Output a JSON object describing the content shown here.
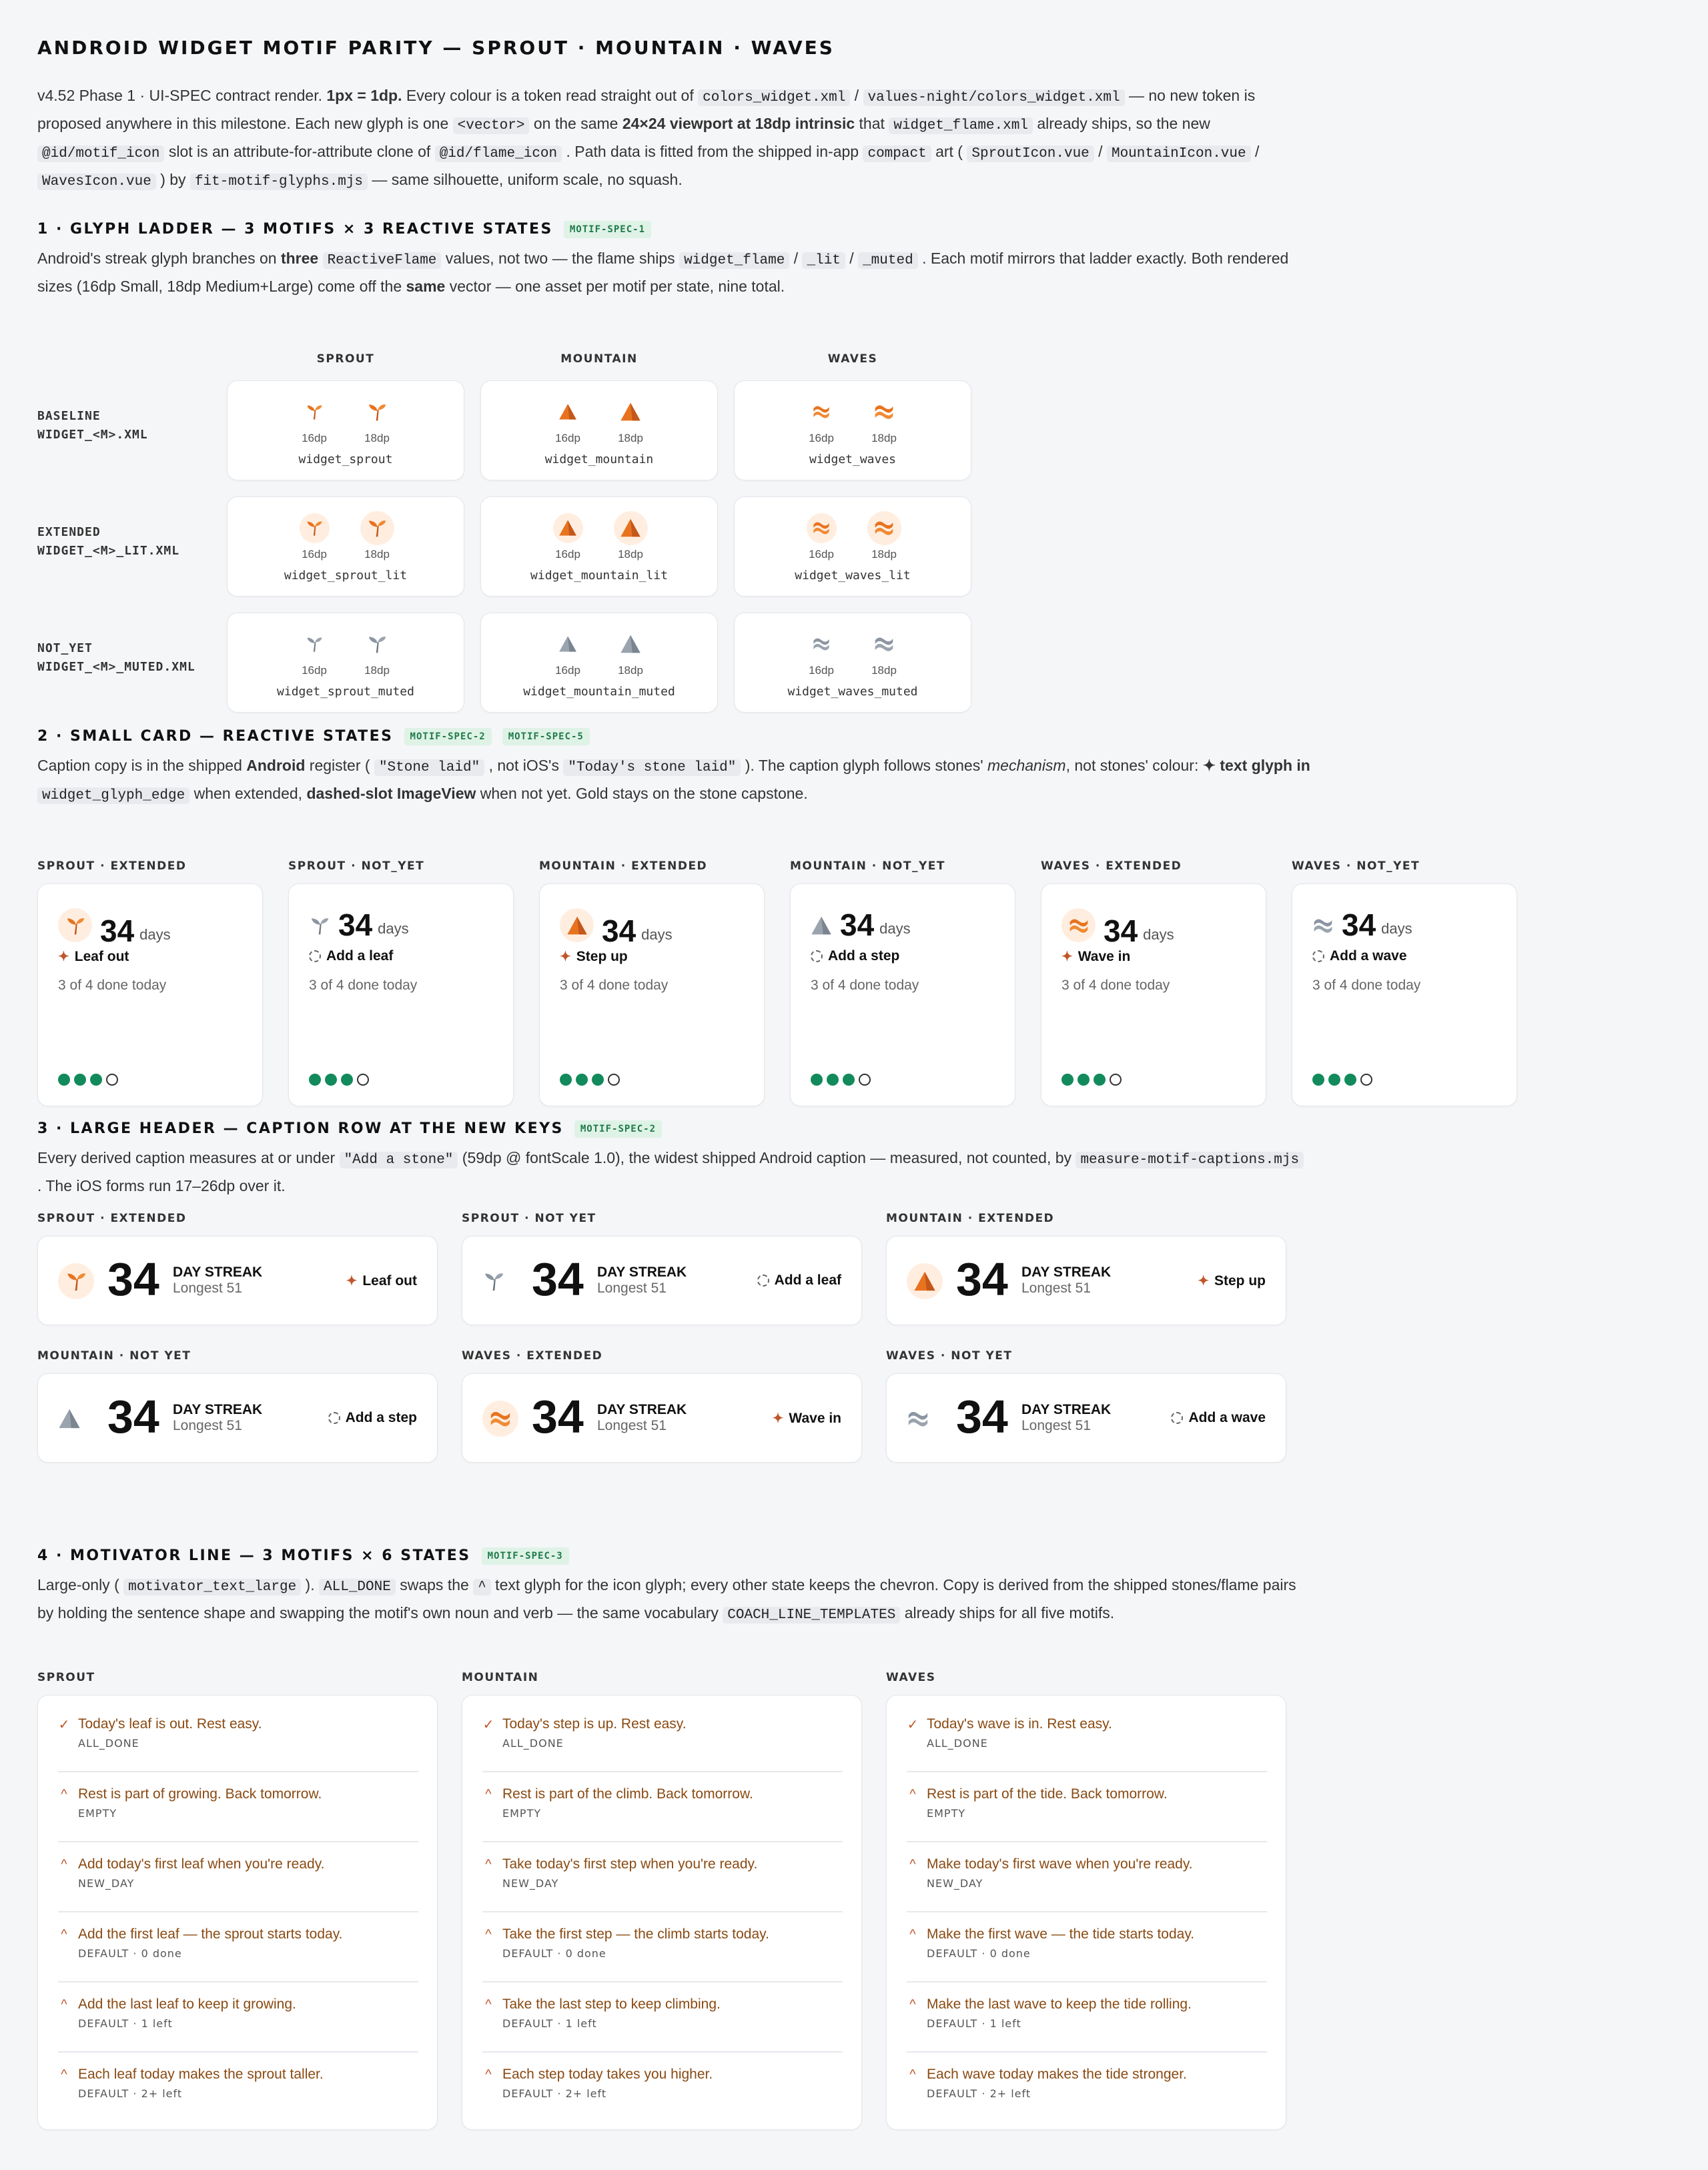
{
  "title": "ANDROID WIDGET MOTIF PARITY — SPROUT · MOUNTAIN · WAVES",
  "intro": {
    "p1": "v4.52 Phase 1 · UI-SPEC contract render. ",
    "b1": "1px = 1dp.",
    "p2": " Every colour is a token read straight out of ",
    "c1": "colors_widget.xml",
    "p3": " / ",
    "c2": "values-night/colors_widget.xml",
    "p4": " — no new token is proposed anywhere in this milestone. Each new glyph is one ",
    "c3": "<vector>",
    "p5": " on the same ",
    "b2": "24×24 viewport at 18dp intrinsic",
    "p6": " that ",
    "c4": "widget_flame.xml",
    "p7": " already ships, so the new ",
    "c5": "@id/motif_icon",
    "p8": " slot is an attribute-for-attribute clone of ",
    "c6": "@id/flame_icon",
    "p9": " . Path data is fitted from the shipped in-app ",
    "c7": "compact",
    "p10": " art ( ",
    "c8": "SproutIcon.vue",
    "p11": " / ",
    "c9": "MountainIcon.vue",
    "p12": " / ",
    "c10": "WavesIcon.vue",
    "p13": " ) by ",
    "c11": "fit-motif-glyphs.mjs",
    "p14": " — same silhouette, uniform scale, no squash."
  },
  "s1": {
    "title": "1 · GLYPH LADDER — 3 MOTIFS × 3 REACTIVE STATES",
    "tag": "MOTIF-SPEC-1",
    "d1": "Android's streak glyph branches on ",
    "db1": "three",
    "d2": " ",
    "dc1": "ReactiveFlame",
    "d3": " values, not two — the flame ships ",
    "dc2": "widget_flame",
    "d4": " / ",
    "dc3": "_lit",
    "d5": " / ",
    "dc4": "_muted",
    "d6": " . Each motif mirrors that ladder exactly. Both rendered sizes (16dp Small, 18dp Medium+Large) come off the ",
    "db2": "same",
    "d7": " vector — one asset per motif per state, nine total.",
    "cols": [
      "SPROUT",
      "MOUNTAIN",
      "WAVES"
    ],
    "size_small": "16dp",
    "size_large": "18dp",
    "rows": [
      {
        "l1": "BASELINE",
        "l2": "WIDGET_<M>.XML",
        "names": [
          "widget_sprout",
          "widget_mountain",
          "widget_waves"
        ]
      },
      {
        "l1": "EXTENDED",
        "l2": "WIDGET_<M>_LIT.XML",
        "names": [
          "widget_sprout_lit",
          "widget_mountain_lit",
          "widget_waves_lit"
        ]
      },
      {
        "l1": "NOT_YET",
        "l2": "WIDGET_<M>_MUTED.XML",
        "names": [
          "widget_sprout_muted",
          "widget_mountain_muted",
          "widget_waves_muted"
        ]
      }
    ]
  },
  "s2": {
    "title": "2 · SMALL CARD — REACTIVE STATES",
    "tag1": "MOTIF-SPEC-2",
    "tag2": "MOTIF-SPEC-5",
    "d1": "Caption copy is in the shipped ",
    "db1": "Android",
    "d2": " register ( ",
    "dc1": "\"Stone laid\"",
    "d3": " , not iOS's ",
    "dc2": "\"Today's stone laid\"",
    "d4": " ). The caption glyph follows stones' ",
    "di1": "mechanism",
    "d5": ", not stones' colour: ",
    "db2": "✦ text glyph in ",
    "dc3": "widget_glyph_edge",
    "d6": " when extended, ",
    "db3": "dashed-slot ImageView",
    "d7": " when not yet. Gold stays on the stone capstone.",
    "count": "34",
    "days": "days",
    "done": "3 of 4 done today",
    "cards": [
      {
        "label": "SPROUT · EXTENDED",
        "caption": "Leaf out"
      },
      {
        "label": "SPROUT · NOT_YET",
        "caption": "Add a leaf"
      },
      {
        "label": "MOUNTAIN · EXTENDED",
        "caption": "Step up"
      },
      {
        "label": "MOUNTAIN · NOT_YET",
        "caption": "Add a step"
      },
      {
        "label": "WAVES · EXTENDED",
        "caption": "Wave in"
      },
      {
        "label": "WAVES · NOT_YET",
        "caption": "Add a wave"
      }
    ]
  },
  "s3": {
    "title": "3 · LARGE HEADER — CAPTION ROW AT THE NEW KEYS",
    "tag": "MOTIF-SPEC-2",
    "d1": "Every derived caption measures at or under ",
    "dc1": "\"Add a stone\"",
    "d2": " (59dp @ fontScale 1.0), the widest shipped Android caption — measured, not counted, by ",
    "dc2": "measure-motif-captions.mjs",
    "d3": " . The iOS forms run 17–26dp over it.",
    "count": "34",
    "streak": "DAY STREAK",
    "longest": "Longest 51",
    "cards": [
      {
        "label": "SPROUT · EXTENDED",
        "caption": "Leaf out"
      },
      {
        "label": "SPROUT · NOT YET",
        "caption": "Add a leaf"
      },
      {
        "label": "MOUNTAIN · EXTENDED",
        "caption": "Step up"
      },
      {
        "label": "MOUNTAIN · NOT YET",
        "caption": "Add a step"
      },
      {
        "label": "WAVES · EXTENDED",
        "caption": "Wave in"
      },
      {
        "label": "WAVES · NOT YET",
        "caption": "Add a wave"
      }
    ]
  },
  "s4": {
    "title": "4 · MOTIVATOR LINE — 3 MOTIFS × 6 STATES",
    "tag": "MOTIF-SPEC-3",
    "d1": "Large-only ( ",
    "dc1": "motivator_text_large",
    "d2": " ). ",
    "dc2": "ALL_DONE",
    "d3": " swaps the ",
    "dc3": "^",
    "d4": " text glyph for the icon glyph; every other state keeps the chevron. Copy is derived from the shipped stones/flame pairs by holding the sentence shape and swapping the motif's own noun and verb — the same vocabulary ",
    "dc4": "COACH_LINE_TEMPLATES",
    "d5": " already ships for all five motifs.",
    "columns": [
      {
        "label": "SPROUT",
        "rows": [
          {
            "text": "Today's leaf is out. Rest easy.",
            "state": "ALL_DONE"
          },
          {
            "text": "Rest is part of growing. Back tomorrow.",
            "state": "EMPTY"
          },
          {
            "text": "Add today's first leaf when you're ready.",
            "state": "NEW_DAY"
          },
          {
            "text": "Add the first leaf — the sprout starts today.",
            "state": "DEFAULT · 0 done"
          },
          {
            "text": "Add the last leaf to keep it growing.",
            "state": "DEFAULT · 1 left"
          },
          {
            "text": "Each leaf today makes the sprout taller.",
            "state": "DEFAULT · 2+ left"
          }
        ]
      },
      {
        "label": "MOUNTAIN",
        "rows": [
          {
            "text": "Today's step is up. Rest easy.",
            "state": "ALL_DONE"
          },
          {
            "text": "Rest is part of the climb. Back tomorrow.",
            "state": "EMPTY"
          },
          {
            "text": "Take today's first step when you're ready.",
            "state": "NEW_DAY"
          },
          {
            "text": "Take the first step — the climb starts today.",
            "state": "DEFAULT · 0 done"
          },
          {
            "text": "Take the last step to keep climbing.",
            "state": "DEFAULT · 1 left"
          },
          {
            "text": "Each step today takes you higher.",
            "state": "DEFAULT · 2+ left"
          }
        ]
      },
      {
        "label": "WAVES",
        "rows": [
          {
            "text": "Today's wave is in. Rest easy.",
            "state": "ALL_DONE"
          },
          {
            "text": "Rest is part of the tide. Back tomorrow.",
            "state": "EMPTY"
          },
          {
            "text": "Make today's first wave when you're ready.",
            "state": "NEW_DAY"
          },
          {
            "text": "Make the first wave — the tide starts today.",
            "state": "DEFAULT · 0 done"
          },
          {
            "text": "Make the last wave to keep the tide rolling.",
            "state": "DEFAULT · 1 left"
          },
          {
            "text": "Each wave today makes the tide stronger.",
            "state": "DEFAULT · 2+ left"
          }
        ]
      }
    ]
  },
  "colors": {
    "lit": "#e8731f",
    "muted": "#8c96a3",
    "green": "#128a5c",
    "ink": "#111111",
    "accent": "#c0562a",
    "motivator": "#8a4a12"
  }
}
